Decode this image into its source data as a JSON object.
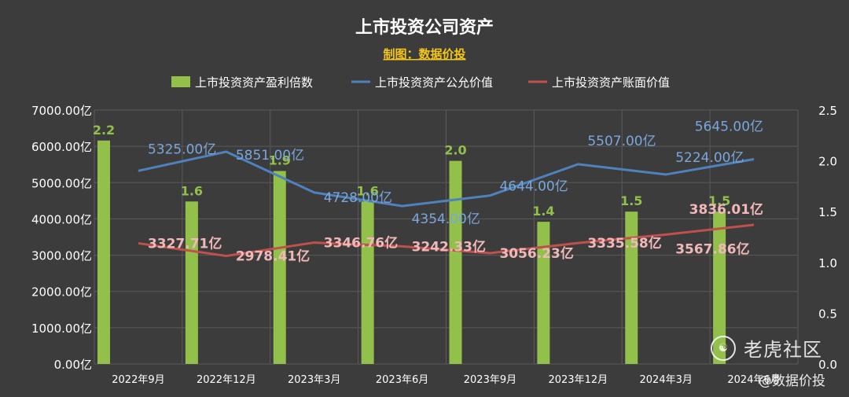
{
  "chart_data": {
    "type": "bar",
    "title": "上市投资公司资产",
    "subtitle": "制图：数据价投",
    "categories": [
      "2022年9月",
      "2022年12月",
      "2023年3月",
      "2023年6月",
      "2023年9月",
      "2023年12月",
      "2024年3月",
      "2024年6月"
    ],
    "series": [
      {
        "name": "上市投资资产盈利倍数",
        "kind": "bar",
        "axis": "right",
        "color": "#92c04a",
        "values": [
          2.2,
          1.6,
          1.9,
          1.6,
          2.0,
          1.4,
          1.5,
          1.5
        ],
        "labels": [
          "2.2",
          "1.6",
          "1.9",
          "1.6",
          "2.0",
          "1.4",
          "1.5",
          "1.5"
        ]
      },
      {
        "name": "上市投资资产公允价值",
        "kind": "line",
        "axis": "left",
        "color": "#4f81bd",
        "label_color": "#7aa7dc",
        "values": [
          5325.0,
          5851.0,
          4728.0,
          4354.0,
          4644.0,
          5507.0,
          5224.0,
          5645.0
        ],
        "labels": [
          "5325.00亿",
          "5851.00亿",
          "4728.00亿",
          "4354.00亿",
          "4644.00亿",
          "5507.00亿",
          "5224.00亿",
          "5645.00亿"
        ]
      },
      {
        "name": "上市投资资产账面价值",
        "kind": "line",
        "axis": "left",
        "color": "#c0504d",
        "label_color": "#f0b8b8",
        "values": [
          3327.71,
          2978.41,
          3346.76,
          3242.33,
          3056.23,
          3335.58,
          3567.86,
          3836.01
        ],
        "labels": [
          "3327.71亿",
          "2978.41亿",
          "3346.76亿",
          "3242.33亿",
          "3056.23亿",
          "3335.58亿",
          "3567.86亿",
          "3836.01亿"
        ]
      }
    ],
    "ylim_left": [
      0,
      7000
    ],
    "yticks_left": [
      0,
      1000,
      2000,
      3000,
      4000,
      5000,
      6000,
      7000
    ],
    "ytick_labels_left": [
      "0.00亿",
      "1000.00亿",
      "2000.00亿",
      "3000.00亿",
      "4000.00亿",
      "5000.00亿",
      "6000.00亿",
      "7000.00亿"
    ],
    "ylim_right": [
      0,
      2.5
    ],
    "yticks_right": [
      0,
      0.5,
      1.0,
      1.5,
      2.0,
      2.5
    ],
    "ytick_labels_right": [
      "0.0",
      "0.5",
      "1.0",
      "1.5",
      "2.0",
      "2.5"
    ],
    "grid": true,
    "legend_position": "top-center"
  },
  "watermarks": {
    "platform_text": "老虎社区",
    "platform_logo_glyph": "☯",
    "author": "@数据价投"
  },
  "colors": {
    "background": "#3c3c3c",
    "grid": "#5a5a5a",
    "axis_text": "#ffffff",
    "title": "#ffffff",
    "subtitle": "#f5c518",
    "bar_label": "#92c04a"
  }
}
